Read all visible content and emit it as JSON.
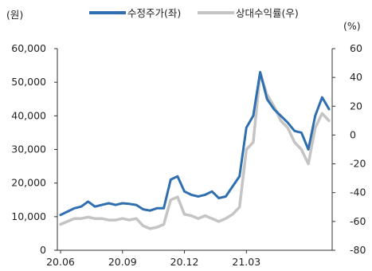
{
  "chart_data": {
    "type": "line",
    "left_unit": "(원)",
    "right_unit": "(%)",
    "x_tick_labels": [
      "20.06",
      "20.09",
      "20.12",
      "21.03"
    ],
    "left_axis": {
      "ylim": [
        0,
        60000
      ],
      "ticks": [
        0,
        10000,
        20000,
        30000,
        40000,
        50000,
        60000
      ],
      "tick_labels": [
        "0",
        "10,000",
        "20,000",
        "30,000",
        "40,000",
        "50,000",
        "60,000"
      ]
    },
    "right_axis": {
      "ylim": [
        -80,
        60
      ],
      "ticks": [
        -80,
        -60,
        -40,
        -20,
        0,
        20,
        40,
        60
      ],
      "tick_labels": [
        "-80",
        "-60",
        "-40",
        "-20",
        "0",
        "20",
        "40",
        "60"
      ]
    },
    "legend": [
      {
        "label": "수정주가(좌)",
        "color": "#2f6fb0"
      },
      {
        "label": "상대수익률(우)",
        "color": "#c4c4c4"
      }
    ],
    "x": [
      "20.06.01",
      "20.06.15",
      "20.06.29",
      "20.07.01",
      "20.07.15",
      "20.07.29",
      "20.08.01",
      "20.08.15",
      "20.08.29",
      "20.09.01",
      "20.09.15",
      "20.09.29",
      "20.10.01",
      "20.10.15",
      "20.10.29",
      "20.11.01",
      "20.11.10",
      "20.11.20",
      "20.12.01",
      "20.12.15",
      "20.12.29",
      "21.01.01",
      "21.01.15",
      "21.01.29",
      "21.02.01",
      "21.02.15",
      "21.02.28",
      "21.03.01",
      "21.03.05",
      "21.03.10",
      "21.03.15",
      "21.03.22",
      "21.04.01",
      "21.04.15",
      "21.04.29",
      "21.05.01",
      "21.05.10",
      "21.05.20",
      "21.05.25",
      "21.05.31"
    ],
    "series": [
      {
        "name": "수정주가(좌)",
        "axis": "left",
        "color": "#2f6fb0",
        "values": [
          10500,
          11500,
          12500,
          13000,
          14500,
          13000,
          13500,
          14000,
          13500,
          14000,
          13800,
          13500,
          12200,
          11800,
          12500,
          12500,
          21000,
          22000,
          17500,
          16500,
          16000,
          16500,
          17500,
          15500,
          16000,
          19000,
          22000,
          36500,
          40000,
          53000,
          45000,
          42000,
          40000,
          38000,
          35500,
          35000,
          30000,
          40000,
          45500,
          42000
        ]
      },
      {
        "name": "상대수익률(우)",
        "axis": "right",
        "color": "#c4c4c4",
        "values": [
          -62,
          -60,
          -58,
          -58,
          -57,
          -58,
          -58,
          -59,
          -59,
          -58,
          -59,
          -58,
          -63,
          -65,
          -64,
          -62,
          -45,
          -43,
          -55,
          -56,
          -58,
          -56,
          -58,
          -60,
          -58,
          -55,
          -50,
          -10,
          -5,
          43,
          28,
          20,
          10,
          5,
          -5,
          -10,
          -20,
          5,
          15,
          10
        ]
      }
    ]
  }
}
